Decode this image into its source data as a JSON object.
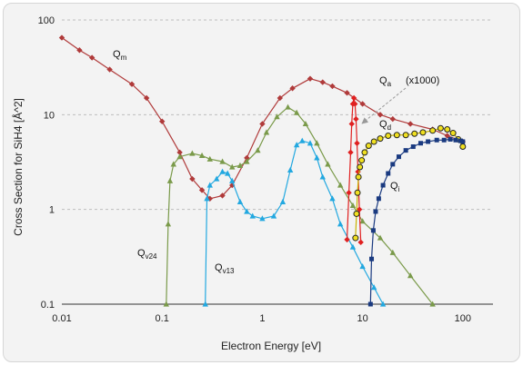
{
  "chart_data": {
    "type": "line",
    "xscale": "log",
    "yscale": "log",
    "xlim": [
      0.01,
      200
    ],
    "ylim": [
      0.1,
      100
    ],
    "xlabel": "Electron Energy [eV]",
    "ylabel": "Cross Section for SiH4 [Å^2]",
    "x_ticks": [
      "0.01",
      "0.1",
      "1",
      "10",
      "100"
    ],
    "y_ticks": [
      "0.1",
      "1",
      "10",
      "100"
    ],
    "grid": "horizontal dashed",
    "annotations": {
      "multiplier": "(x1000)"
    },
    "series": [
      {
        "label_main": "Q",
        "label_sub": "m",
        "color": "#b03a3a",
        "marker": "diamond",
        "points": [
          [
            0.01,
            65
          ],
          [
            0.015,
            48
          ],
          [
            0.02,
            40
          ],
          [
            0.03,
            30
          ],
          [
            0.05,
            21
          ],
          [
            0.07,
            15
          ],
          [
            0.1,
            8.5
          ],
          [
            0.15,
            4
          ],
          [
            0.2,
            2.1
          ],
          [
            0.25,
            1.6
          ],
          [
            0.3,
            1.3
          ],
          [
            0.4,
            1.4
          ],
          [
            0.5,
            1.8
          ],
          [
            0.7,
            3.5
          ],
          [
            1.0,
            8
          ],
          [
            1.5,
            15
          ],
          [
            2,
            19
          ],
          [
            3,
            24
          ],
          [
            4,
            22
          ],
          [
            5,
            20
          ],
          [
            7,
            17
          ],
          [
            10,
            13
          ],
          [
            15,
            10
          ],
          [
            20,
            9
          ],
          [
            30,
            8
          ],
          [
            50,
            7
          ],
          [
            70,
            6
          ],
          [
            100,
            5.2
          ]
        ]
      },
      {
        "label_main": "Q",
        "label_sub": "v24",
        "color": "#7a9a4a",
        "marker": "triangle",
        "points": [
          [
            0.11,
            0.1
          ],
          [
            0.115,
            0.7
          ],
          [
            0.12,
            2.0
          ],
          [
            0.13,
            3.0
          ],
          [
            0.15,
            3.6
          ],
          [
            0.2,
            3.9
          ],
          [
            0.25,
            3.7
          ],
          [
            0.3,
            3.4
          ],
          [
            0.4,
            3.2
          ],
          [
            0.5,
            2.8
          ],
          [
            0.6,
            2.9
          ],
          [
            0.7,
            3.2
          ],
          [
            0.9,
            4.2
          ],
          [
            1.1,
            6.5
          ],
          [
            1.4,
            9.5
          ],
          [
            1.8,
            12
          ],
          [
            2.2,
            10.5
          ],
          [
            2.7,
            8
          ],
          [
            3.5,
            5
          ],
          [
            4.5,
            3
          ],
          [
            6,
            1.8
          ],
          [
            8,
            1.1
          ],
          [
            10,
            0.75
          ],
          [
            15,
            0.5
          ],
          [
            20,
            0.35
          ],
          [
            30,
            0.2
          ],
          [
            50,
            0.1
          ]
        ]
      },
      {
        "label_main": "Q",
        "label_sub": "v13",
        "color": "#22a8e0",
        "marker": "triangle",
        "points": [
          [
            0.27,
            0.1
          ],
          [
            0.28,
            1.3
          ],
          [
            0.3,
            1.8
          ],
          [
            0.35,
            2.1
          ],
          [
            0.4,
            2.5
          ],
          [
            0.45,
            2.4
          ],
          [
            0.5,
            2.0
          ],
          [
            0.6,
            1.2
          ],
          [
            0.7,
            0.95
          ],
          [
            0.8,
            0.85
          ],
          [
            1.0,
            0.8
          ],
          [
            1.3,
            0.85
          ],
          [
            1.6,
            1.2
          ],
          [
            1.9,
            2.6
          ],
          [
            2.2,
            4.8
          ],
          [
            2.5,
            5.3
          ],
          [
            3,
            5
          ],
          [
            3.5,
            3.5
          ],
          [
            4,
            2.2
          ],
          [
            5,
            1.3
          ],
          [
            6,
            0.7
          ],
          [
            8,
            0.4
          ],
          [
            10,
            0.25
          ],
          [
            13,
            0.15
          ],
          [
            16,
            0.1
          ]
        ]
      },
      {
        "label_main": "Q",
        "label_sub": "a",
        "color": "#e02020",
        "marker": "diamond",
        "points": [
          [
            7.0,
            0.48
          ],
          [
            7.3,
            1.5
          ],
          [
            7.6,
            4
          ],
          [
            7.8,
            8
          ],
          [
            8.0,
            13
          ],
          [
            8.2,
            15
          ],
          [
            8.4,
            13
          ],
          [
            8.6,
            9
          ],
          [
            8.8,
            5
          ],
          [
            9.0,
            2.5
          ],
          [
            9.3,
            1.0
          ],
          [
            9.6,
            0.45
          ]
        ]
      },
      {
        "label_main": "Q",
        "label_sub": "d",
        "color": "#f0e020",
        "marker": "circle",
        "points": [
          [
            8.5,
            0.5
          ],
          [
            8.7,
            0.9
          ],
          [
            8.9,
            1.5
          ],
          [
            9.1,
            2.2
          ],
          [
            9.4,
            2.8
          ],
          [
            9.8,
            3.3
          ],
          [
            10.5,
            4
          ],
          [
            11.5,
            4.7
          ],
          [
            13,
            5.2
          ],
          [
            15,
            5.6
          ],
          [
            18,
            6
          ],
          [
            22,
            6.1
          ],
          [
            27,
            6.1
          ],
          [
            33,
            6.3
          ],
          [
            40,
            6.5
          ],
          [
            50,
            6.8
          ],
          [
            60,
            7.2
          ],
          [
            70,
            7
          ],
          [
            80,
            6.4
          ],
          [
            90,
            5.5
          ],
          [
            100,
            4.6
          ]
        ]
      },
      {
        "label_main": "Q",
        "label_sub": "i",
        "color": "#1a3a80",
        "marker": "square",
        "points": [
          [
            12,
            0.1
          ],
          [
            12.3,
            0.3
          ],
          [
            12.8,
            0.6
          ],
          [
            13.5,
            0.95
          ],
          [
            14.5,
            1.3
          ],
          [
            16,
            1.8
          ],
          [
            18,
            2.4
          ],
          [
            20,
            3.0
          ],
          [
            23,
            3.6
          ],
          [
            27,
            4.2
          ],
          [
            32,
            4.6
          ],
          [
            38,
            5
          ],
          [
            45,
            5.2
          ],
          [
            55,
            5.4
          ],
          [
            65,
            5.4
          ],
          [
            75,
            5.5
          ],
          [
            85,
            5.4
          ],
          [
            95,
            5.3
          ],
          [
            100,
            5.2
          ]
        ]
      }
    ]
  }
}
